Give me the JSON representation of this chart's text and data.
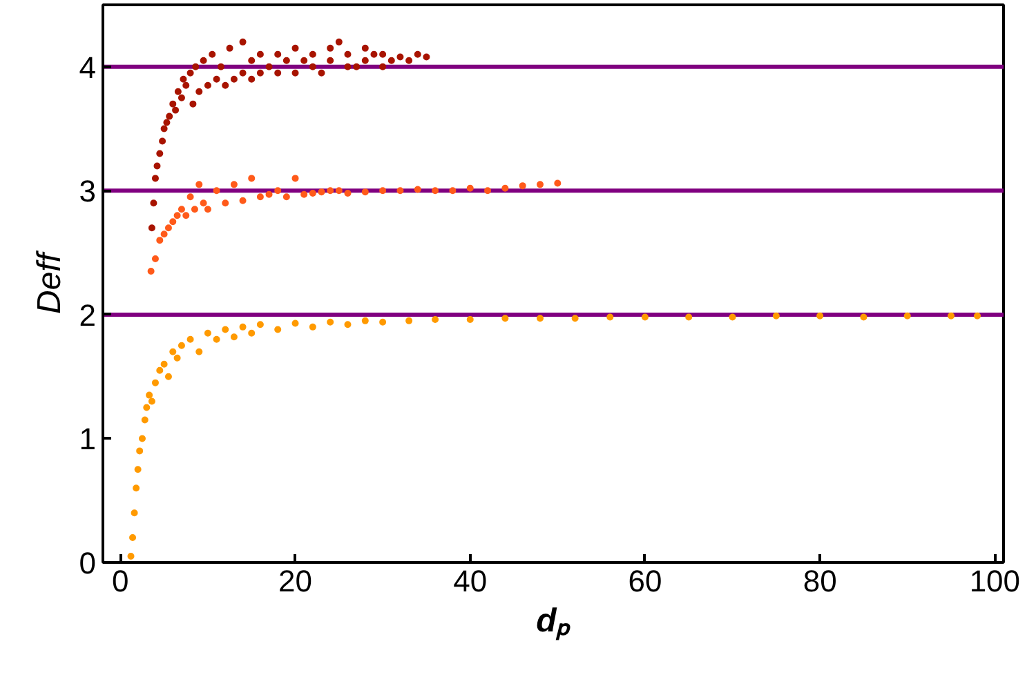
{
  "chart_data": {
    "type": "scatter",
    "xlabel": "dₚ",
    "ylabel": "Deff",
    "xlim": [
      -2,
      101
    ],
    "ylim": [
      0,
      4.5
    ],
    "xticks": [
      0,
      20,
      40,
      60,
      80,
      100
    ],
    "yticks": [
      0,
      1,
      2,
      3,
      4
    ],
    "marker": "circle",
    "series": [
      {
        "color": "#a81400",
        "x": [
          3.6,
          3.8,
          4.0,
          4.2,
          4.5,
          4.8,
          5.0,
          5.3,
          5.6,
          6.0,
          6.3,
          6.6,
          7.0,
          7.2,
          7.5,
          8.0,
          8.3,
          8.6,
          9.0,
          9.5,
          10,
          10.5,
          11,
          11.5,
          12,
          12.5,
          13,
          14,
          14,
          15,
          15,
          16,
          16,
          17,
          18,
          18,
          19,
          20,
          20,
          21,
          22,
          22,
          23,
          24,
          24,
          25,
          26,
          26,
          27,
          28,
          28,
          29,
          30,
          30,
          31,
          32,
          33,
          34,
          35
        ],
        "values": [
          2.7,
          2.9,
          3.1,
          3.2,
          3.3,
          3.4,
          3.5,
          3.55,
          3.6,
          3.7,
          3.65,
          3.8,
          3.75,
          3.9,
          3.85,
          3.95,
          3.7,
          4.0,
          3.8,
          4.05,
          3.85,
          4.1,
          3.9,
          4.0,
          3.85,
          4.15,
          3.9,
          4.2,
          3.95,
          4.05,
          3.9,
          4.1,
          3.95,
          4.0,
          4.1,
          3.95,
          4.05,
          4.15,
          3.95,
          4.05,
          4.0,
          4.1,
          3.95,
          4.15,
          4.05,
          4.2,
          4.0,
          4.1,
          4.0,
          4.15,
          4.05,
          4.1,
          4.0,
          4.1,
          4.05,
          4.08,
          4.05,
          4.1,
          4.08
        ]
      },
      {
        "color": "#ff5a1a",
        "x": [
          3.5,
          4.0,
          4.5,
          5.0,
          5.5,
          6.0,
          6.5,
          7.0,
          7.5,
          8.0,
          8.5,
          9.0,
          9.5,
          10,
          11,
          12,
          13,
          14,
          15,
          16,
          17,
          18,
          19,
          20,
          21,
          22,
          23,
          24,
          25,
          26,
          28,
          30,
          32,
          34,
          36,
          38,
          40,
          42,
          44,
          46,
          48,
          50
        ],
        "values": [
          2.35,
          2.45,
          2.6,
          2.65,
          2.7,
          2.75,
          2.8,
          2.85,
          2.8,
          2.95,
          2.85,
          3.05,
          2.9,
          2.85,
          3.0,
          2.9,
          3.05,
          2.92,
          3.1,
          2.95,
          2.97,
          3.0,
          2.95,
          3.1,
          2.97,
          2.98,
          2.99,
          3.0,
          3.0,
          2.98,
          2.99,
          3.0,
          3.0,
          3.01,
          3.0,
          3.0,
          3.02,
          3.0,
          3.02,
          3.04,
          3.05,
          3.06
        ]
      },
      {
        "color": "#ff9a00",
        "x": [
          1.2,
          1.4,
          1.6,
          1.8,
          2.0,
          2.2,
          2.5,
          2.8,
          3.0,
          3.3,
          3.6,
          4.0,
          4.5,
          5.0,
          5.5,
          6.0,
          6.5,
          7.0,
          8.0,
          9.0,
          10,
          11,
          12,
          13,
          14,
          15,
          16,
          18,
          20,
          22,
          24,
          26,
          28,
          30,
          33,
          36,
          40,
          44,
          48,
          52,
          56,
          60,
          65,
          70,
          75,
          80,
          85,
          90,
          95,
          98
        ],
        "values": [
          0.05,
          0.2,
          0.4,
          0.6,
          0.75,
          0.9,
          1.0,
          1.15,
          1.25,
          1.35,
          1.3,
          1.45,
          1.55,
          1.6,
          1.5,
          1.7,
          1.65,
          1.75,
          1.8,
          1.7,
          1.85,
          1.8,
          1.88,
          1.82,
          1.9,
          1.85,
          1.92,
          1.88,
          1.93,
          1.9,
          1.94,
          1.92,
          1.95,
          1.94,
          1.95,
          1.96,
          1.96,
          1.97,
          1.97,
          1.97,
          1.98,
          1.98,
          1.98,
          1.98,
          1.99,
          1.99,
          1.98,
          1.99,
          1.99,
          1.99
        ]
      }
    ],
    "ref_lines": [
      {
        "axis": "y",
        "value": 2,
        "color": "#800080"
      },
      {
        "axis": "y",
        "value": 3,
        "color": "#800080"
      },
      {
        "axis": "y",
        "value": 4,
        "color": "#800080"
      }
    ]
  }
}
